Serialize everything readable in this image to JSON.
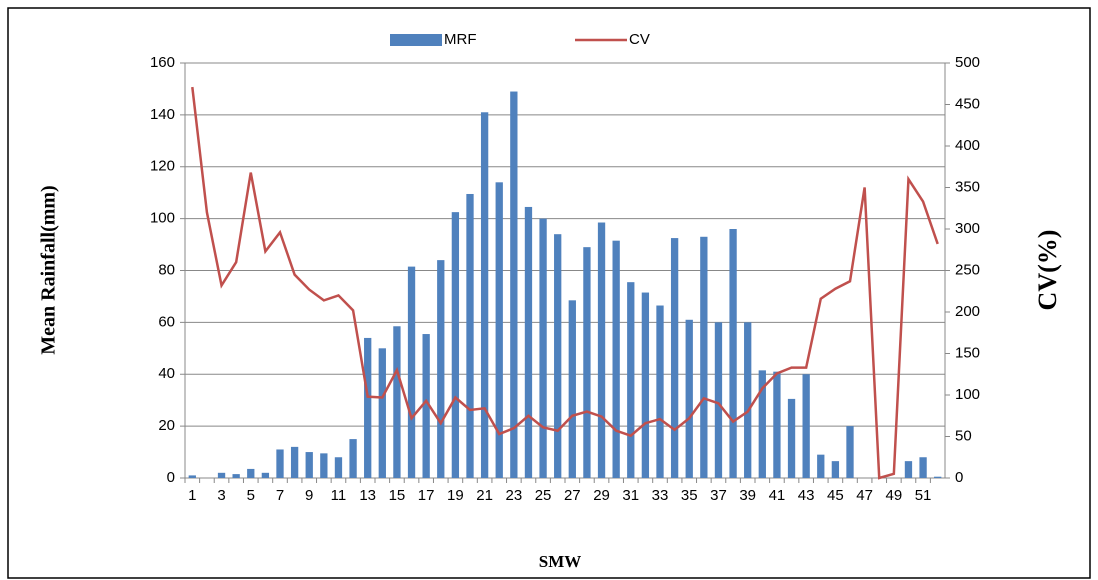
{
  "chart_data": {
    "type": "bar_line",
    "x_label": "SMW",
    "y_label": "Mean Rainfall(mm)",
    "y2_label": "CV(%)",
    "categories": [
      "1",
      null,
      "3",
      null,
      "5",
      null,
      "7",
      null,
      "9",
      null,
      "11",
      null,
      "13",
      null,
      "15",
      null,
      "17",
      null,
      "19",
      null,
      "21",
      null,
      "23",
      null,
      "25",
      null,
      "27",
      null,
      "29",
      null,
      "31",
      null,
      "33",
      null,
      "35",
      null,
      "37",
      null,
      "39",
      null,
      "41",
      null,
      "43",
      null,
      "45",
      null,
      "47",
      null,
      "49",
      null,
      "51",
      null
    ],
    "series": [
      {
        "name": "MRF",
        "type": "bar",
        "color": "#4f81bd",
        "axis": "y",
        "values": [
          1,
          0,
          2,
          1.5,
          3.5,
          2,
          11,
          12,
          10,
          9.5,
          8,
          15,
          54,
          50,
          58.5,
          81.5,
          55.5,
          84,
          102.5,
          109.5,
          141,
          114,
          149,
          104.5,
          100,
          94,
          68.5,
          89,
          98.5,
          91.5,
          75.5,
          71.5,
          66.5,
          92.5,
          61,
          93,
          60,
          96,
          60,
          41.5,
          41,
          30.5,
          40,
          9,
          6.5,
          20,
          0,
          0,
          0,
          6.5,
          8,
          0.5
        ]
      },
      {
        "name": "CV",
        "type": "line",
        "color": "#c0504d",
        "axis": "y2",
        "values": [
          471,
          320,
          232,
          260,
          368,
          273,
          296,
          245,
          227,
          214,
          220,
          202,
          98,
          97,
          130,
          72,
          93,
          66,
          97,
          82,
          84,
          53,
          60,
          75,
          61,
          57,
          75,
          80,
          74,
          57,
          51,
          66,
          71,
          58,
          72,
          96,
          90,
          68,
          80,
          108,
          126,
          133,
          133,
          216,
          228,
          237,
          350,
          0,
          5,
          360,
          333,
          282
        ]
      }
    ],
    "ylim": [
      0,
      160
    ],
    "yticks": [
      0,
      20,
      40,
      60,
      80,
      100,
      120,
      140,
      160
    ],
    "y2lim": [
      0,
      500
    ],
    "y2ticks": [
      0,
      50,
      100,
      150,
      200,
      250,
      300,
      350,
      400,
      450,
      500
    ],
    "grid": true,
    "legend": "top"
  }
}
